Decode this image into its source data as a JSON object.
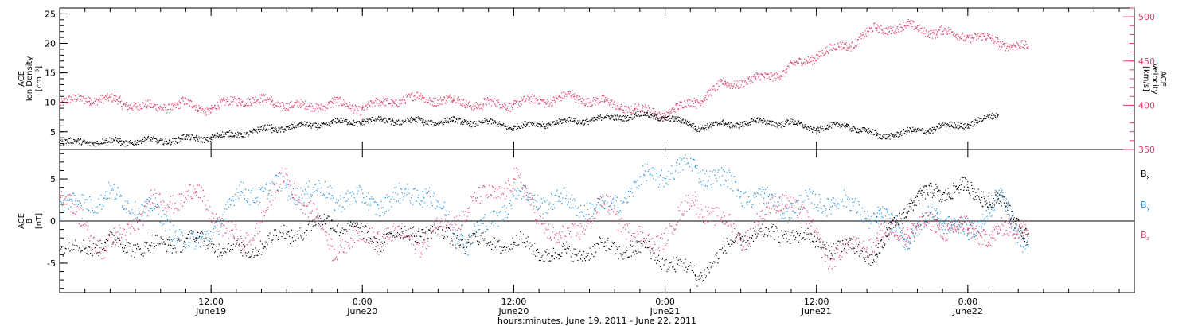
{
  "colors": {
    "black": "#000000",
    "pink": "#e0406a",
    "blue": "#1f8fe0"
  },
  "chart_data": [
    {
      "type": "scatter",
      "panel": "top",
      "left_axis": {
        "label_lines": [
          "ACE",
          "Ion Density"
        ],
        "unit": "[cm⁻³]",
        "ylim": [
          2,
          26
        ],
        "ticks": [
          5,
          10,
          15,
          20,
          25
        ]
      },
      "right_axis": {
        "label_lines": [
          "ACE",
          "Velocity"
        ],
        "unit": "[km/s]",
        "ylim": [
          350,
          510
        ],
        "ticks": [
          350,
          400,
          450,
          500
        ]
      },
      "series": [
        {
          "key": "density",
          "color": "#000000",
          "axis": "left",
          "x": [
            0,
            0.1,
            0.2,
            0.3,
            0.4,
            0.5,
            0.6,
            0.7,
            0.8,
            0.9,
            1.0,
            1.1,
            1.2,
            1.3,
            1.4,
            1.5,
            1.6,
            1.7,
            1.8,
            1.9,
            2.0,
            2.1,
            2.2,
            2.3,
            2.4,
            2.5,
            2.6,
            2.7,
            2.8,
            2.9,
            3.0,
            3.1
          ],
          "values": [
            3.2,
            3.3,
            3.4,
            3.6,
            3.8,
            4.1,
            4.7,
            5.6,
            6.1,
            6.6,
            6.8,
            6.9,
            6.8,
            6.9,
            6.6,
            5.9,
            6.4,
            6.9,
            7.4,
            7.9,
            7.5,
            5.9,
            6.3,
            6.8,
            6.6,
            5.5,
            6.2,
            4.4,
            5.0,
            5.8,
            6.3,
            7.8
          ]
        },
        {
          "key": "velocity",
          "color": "#e0406a",
          "axis": "right",
          "x": [
            0,
            0.1,
            0.2,
            0.3,
            0.4,
            0.5,
            0.6,
            0.7,
            0.8,
            0.9,
            1.0,
            1.1,
            1.2,
            1.3,
            1.4,
            1.5,
            1.6,
            1.7,
            1.8,
            1.9,
            2.0,
            2.1,
            2.2,
            2.3,
            2.4,
            2.5,
            2.6,
            2.7,
            2.8,
            2.9,
            3.0,
            3.1,
            3.2
          ],
          "values": [
            402,
            408,
            404,
            398,
            402,
            396,
            407,
            404,
            399,
            403,
            397,
            405,
            409,
            406,
            401,
            402,
            406,
            410,
            404,
            396,
            390,
            405,
            425,
            430,
            440,
            457,
            468,
            487,
            490,
            483,
            478,
            472,
            464
          ]
        }
      ]
    },
    {
      "type": "scatter",
      "panel": "bottom",
      "left_axis": {
        "label_lines": [
          "ACE",
          "B"
        ],
        "unit": "[nT]",
        "ylim": [
          -8.5,
          8.5
        ],
        "ticks": [
          -5,
          0,
          5
        ]
      },
      "zero_line": true,
      "series": [
        {
          "key": "Bx",
          "name": "B",
          "sub": "x",
          "color": "#000000",
          "x": [
            0,
            0.15,
            0.3,
            0.45,
            0.6,
            0.75,
            0.9,
            1.05,
            1.2,
            1.35,
            1.5,
            1.65,
            1.8,
            1.95,
            2.1,
            2.25,
            2.4,
            2.55,
            2.7,
            2.8,
            2.9,
            3.0,
            3.1,
            3.2
          ],
          "values": [
            -3.5,
            -2.5,
            -3.0,
            -2.0,
            -3.5,
            -1.5,
            0.0,
            -2.5,
            -1.0,
            -2.5,
            -2.5,
            -4.0,
            -3.0,
            -3.5,
            -6.5,
            -2.0,
            -1.5,
            -3.0,
            -4.0,
            2.0,
            3.5,
            4.0,
            2.5,
            -1.5
          ]
        },
        {
          "key": "By",
          "name": "B",
          "sub": "y",
          "color": "#1f8fe0",
          "x": [
            0,
            0.15,
            0.3,
            0.45,
            0.6,
            0.75,
            0.9,
            1.05,
            1.2,
            1.35,
            1.5,
            1.65,
            1.8,
            1.95,
            2.1,
            2.25,
            2.4,
            2.55,
            2.7,
            2.8,
            2.9,
            3.0,
            3.1,
            3.2
          ],
          "values": [
            1.5,
            3.0,
            1.5,
            -3.0,
            3.5,
            4.0,
            3.0,
            2.0,
            3.5,
            -2.5,
            3.0,
            2.5,
            1.5,
            5.5,
            6.5,
            3.5,
            1.5,
            2.5,
            0.5,
            -2.0,
            1.0,
            -1.5,
            3.0,
            -3.0
          ]
        },
        {
          "key": "Bz",
          "name": "B",
          "sub": "z",
          "color": "#e0406a",
          "x": [
            0,
            0.15,
            0.3,
            0.45,
            0.6,
            0.75,
            0.9,
            1.05,
            1.2,
            1.35,
            1.5,
            1.65,
            1.8,
            1.95,
            2.1,
            2.25,
            2.4,
            2.55,
            2.7,
            2.8,
            2.9,
            3.0,
            3.1,
            3.2
          ],
          "values": [
            3.0,
            -3.5,
            2.0,
            3.5,
            -3.0,
            5.5,
            -3.0,
            -1.5,
            -2.5,
            1.5,
            5.0,
            -2.5,
            2.0,
            -3.0,
            2.5,
            -2.0,
            3.0,
            -4.5,
            -2.0,
            -1.0,
            -0.5,
            -1.0,
            -1.5,
            0.0
          ]
        }
      ]
    }
  ],
  "x_axis": {
    "start_label": "June 19, 2011",
    "xlim": [
      0,
      3.55
    ],
    "major_ticks": [
      {
        "x": 0.5,
        "time": "12:00",
        "date": "June19"
      },
      {
        "x": 1.0,
        "time": "0:00",
        "date": "June20"
      },
      {
        "x": 1.5,
        "time": "12:00",
        "date": "June20"
      },
      {
        "x": 2.0,
        "time": "0:00",
        "date": "June21"
      },
      {
        "x": 2.5,
        "time": "12:00",
        "date": "June21"
      },
      {
        "x": 3.0,
        "time": "0:00",
        "date": "June22"
      }
    ],
    "xlabel": "hours:minutes, June 19, 2011 - June 22, 2011"
  }
}
